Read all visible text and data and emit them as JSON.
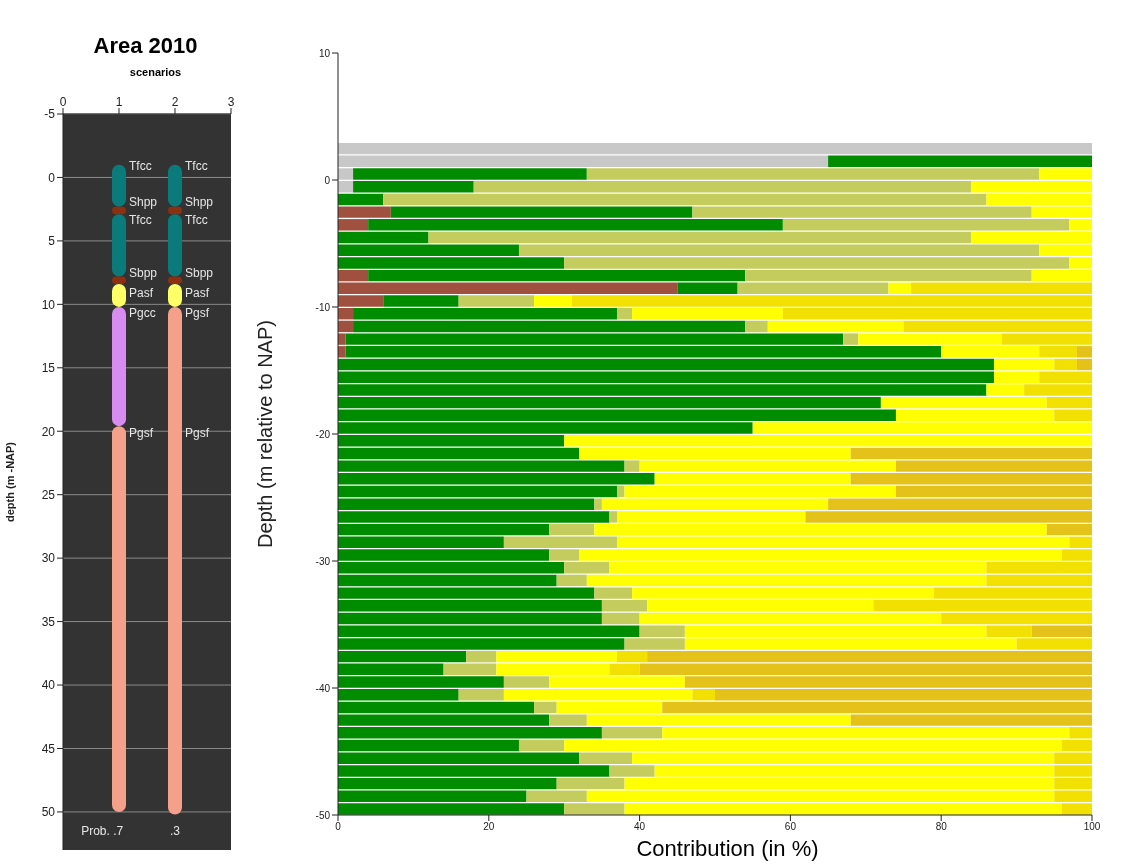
{
  "chart_data": [
    {
      "type": "bar",
      "title": "Area 2010",
      "xlabel": "scenarios",
      "ylabel": "depth (m -NAP)",
      "x": [
        1,
        2
      ],
      "xlim": [
        0,
        3
      ],
      "xticks": [
        0,
        1,
        2,
        3
      ],
      "ylim": [
        53,
        -5
      ],
      "yticks": [
        -5,
        0,
        5,
        10,
        15,
        20,
        25,
        30,
        35,
        40,
        45,
        50
      ],
      "grid": "y",
      "series": [
        {
          "color": "#0a7a7a",
          "base": [
            -1,
            -1
          ],
          "values": [
            3.3,
            3.3
          ]
        },
        {
          "color": "#8b3010",
          "base": [
            2.3,
            2.3
          ],
          "values": [
            0.6,
            0.6
          ]
        },
        {
          "color": "#0a7a7a",
          "base": [
            2.9,
            2.9
          ],
          "values": [
            4.9,
            4.9
          ]
        },
        {
          "color": "#8b3010",
          "base": [
            7.8,
            7.8
          ],
          "values": [
            0.6,
            0.6
          ]
        },
        {
          "color": "#ffff66",
          "base": [
            8.4,
            8.4
          ],
          "values": [
            1.8,
            1.8
          ]
        },
        {
          "colors": [
            "#d98cf0",
            "#f4a08a"
          ],
          "base": [
            10.2,
            10.2
          ],
          "values": [
            9.4,
            40
          ]
        },
        {
          "color": "#f4a08a",
          "base": [
            19.6,
            null
          ],
          "values": [
            30.4,
            null
          ]
        }
      ],
      "annotations": [
        "Tfcc",
        "Shpp",
        "Tfcc",
        "Sbpp",
        "Pasf",
        "Pgcc",
        "Pgsf",
        "Tfcc",
        "Shpp",
        "Tfcc",
        "Sbpp",
        "Pasf",
        "Pgsf",
        "Pgsf",
        "Prob. .7",
        ".3"
      ]
    },
    {
      "type": "bar",
      "orientation": "horizontal",
      "stacked": true,
      "xlabel": "Contribution (in %)",
      "ylabel": "Depth (m relative to NAP)",
      "xlim": [
        0,
        100
      ],
      "xticks": [
        0,
        20,
        40,
        60,
        80,
        100
      ],
      "ylim": [
        -50,
        10
      ],
      "yticks": [
        -50,
        -40,
        -30,
        -20,
        -10,
        0,
        10
      ],
      "x": [
        2.5,
        1.5,
        0.5,
        -0.5,
        -1.5,
        -2.5,
        -3.5,
        -4.5,
        -5.5,
        -6.5,
        -7.5,
        -8.5,
        -9.5,
        -10.5,
        -11.5,
        -12.5,
        -13.5,
        -14.5,
        -15.5,
        -16.5,
        -17.5,
        -18.5,
        -19.5,
        -20.5,
        -21.5,
        -22.5,
        -23.5,
        -24.5,
        -25.5,
        -26.5,
        -27.5,
        -28.5,
        -29.5,
        -30.5,
        -31.5,
        -32.5,
        -33.5,
        -34.5,
        -35.5,
        -36.5,
        -37.5,
        -38.5,
        -39.5,
        -40.5,
        -41.5,
        -42.5,
        -43.5,
        -44.5,
        -45.5,
        -46.5,
        -47.5,
        -48.5,
        -49.5
      ],
      "series": [
        {
          "color": "#c8c8c8",
          "values": [
            100,
            65,
            2,
            2,
            null,
            null,
            null,
            null,
            null,
            null,
            null,
            null,
            null,
            null,
            null,
            null,
            null,
            null,
            null,
            null,
            null,
            null,
            null,
            null,
            null,
            null,
            null,
            null,
            null,
            null,
            null,
            null,
            null,
            null,
            null,
            null,
            null,
            null,
            null,
            null,
            null,
            null,
            null,
            null,
            null,
            null,
            null,
            null,
            null,
            null,
            null,
            null,
            null
          ]
        },
        {
          "color": "#a0503f",
          "values": [
            null,
            null,
            null,
            null,
            null,
            7,
            4,
            null,
            null,
            null,
            4,
            45,
            6,
            2,
            2,
            1,
            1,
            null,
            null,
            null,
            null,
            null,
            null,
            null,
            null,
            null,
            null,
            null,
            null,
            null,
            null,
            null,
            null,
            null,
            null,
            null,
            null,
            null,
            null,
            null,
            null,
            null,
            null,
            null,
            null,
            null,
            null,
            null,
            null,
            null,
            null,
            null,
            null
          ]
        },
        {
          "color": "#008c00",
          "values": [
            null,
            35,
            31,
            16,
            6,
            40,
            55,
            12,
            24,
            30,
            50,
            8,
            10,
            35,
            52,
            66,
            79,
            87,
            87,
            86,
            72,
            74,
            55,
            30,
            32,
            38,
            42,
            37,
            34,
            36,
            28,
            22,
            28,
            30,
            29,
            34,
            35,
            35,
            40,
            38,
            17,
            14,
            22,
            16,
            26,
            28,
            35,
            24,
            32,
            36,
            29,
            25,
            30
          ]
        },
        {
          "color": "#c4cc5e",
          "values": [
            null,
            null,
            60,
            66,
            80,
            45,
            38,
            72,
            69,
            67,
            38,
            20,
            10,
            2,
            3,
            2,
            null,
            null,
            null,
            null,
            null,
            null,
            null,
            null,
            null,
            2,
            null,
            1,
            1,
            1,
            6,
            15,
            4,
            6,
            4,
            5,
            6,
            5,
            6,
            8,
            4,
            7,
            6,
            6,
            3,
            5,
            8,
            6,
            7,
            6,
            9,
            8,
            8
          ]
        },
        {
          "color": "#ffff00",
          "values": [
            null,
            null,
            7,
            16,
            14,
            8,
            3,
            16,
            7,
            3,
            8,
            3,
            5,
            20,
            18,
            19,
            13,
            8,
            6,
            5,
            22,
            21,
            45,
            70,
            36,
            34,
            26,
            36,
            30,
            25,
            60,
            60,
            64,
            50,
            53,
            40,
            30,
            40,
            40,
            44,
            16,
            15,
            18,
            25,
            14,
            35,
            54,
            66,
            56,
            53,
            57,
            62,
            58
          ]
        },
        {
          "color": "#f2e000",
          "values": [
            null,
            null,
            null,
            null,
            null,
            null,
            null,
            null,
            null,
            null,
            null,
            24,
            69,
            41,
            25,
            12,
            5,
            3,
            7,
            9,
            6,
            5,
            null,
            null,
            null,
            null,
            null,
            null,
            null,
            null,
            null,
            3,
            4,
            14,
            14,
            21,
            29,
            20,
            6,
            10,
            4,
            4,
            null,
            3,
            null,
            null,
            3,
            4,
            5,
            5,
            5,
            5,
            4
          ]
        },
        {
          "color": "#e5c21a",
          "values": [
            null,
            null,
            null,
            null,
            null,
            null,
            null,
            null,
            null,
            null,
            null,
            null,
            null,
            null,
            null,
            null,
            2,
            2,
            null,
            null,
            null,
            null,
            null,
            null,
            32,
            26,
            32,
            26,
            35,
            38,
            6,
            null,
            null,
            null,
            null,
            null,
            null,
            null,
            8,
            null,
            59,
            60,
            54,
            50,
            57,
            32,
            null,
            null,
            null,
            null,
            null,
            null,
            null
          ]
        }
      ]
    }
  ]
}
